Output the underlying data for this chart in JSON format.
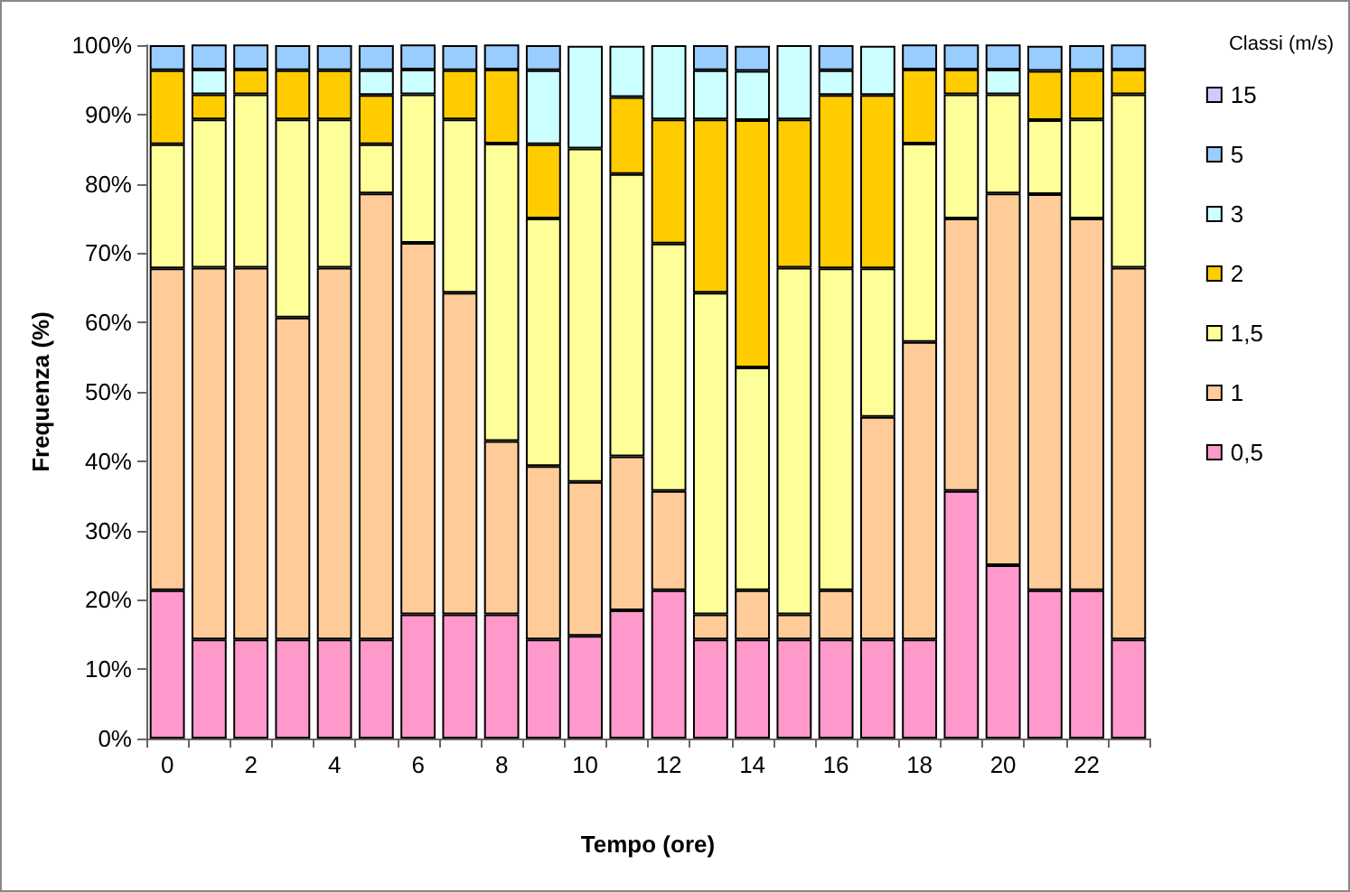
{
  "chart_data": {
    "type": "bar",
    "stacked": true,
    "xlabel": "Tempo (ore)",
    "ylabel": "Frequenza (%)",
    "legend_title": "Classi (m/s)",
    "legend": "right",
    "grid": false,
    "categories": [
      "0",
      null,
      "2",
      null,
      "4",
      null,
      "6",
      null,
      "8",
      null,
      "10",
      null,
      "12",
      null,
      "14",
      null,
      "16",
      null,
      "18",
      null,
      "20",
      null,
      "22",
      null
    ],
    "ylim": [
      0,
      100
    ],
    "yticks": [
      {
        "value": 0,
        "label": "0%"
      },
      {
        "value": 10,
        "label": "10%"
      },
      {
        "value": 20,
        "label": "20%"
      },
      {
        "value": 30,
        "label": "30%"
      },
      {
        "value": 40,
        "label": "40%"
      },
      {
        "value": 50,
        "label": "50%"
      },
      {
        "value": 60,
        "label": "60%"
      },
      {
        "value": 70,
        "label": "70%"
      },
      {
        "value": 80,
        "label": "80%"
      },
      {
        "value": 90,
        "label": "90%"
      },
      {
        "value": 100,
        "label": "100%"
      }
    ],
    "series": [
      {
        "name": "0,5",
        "color": "#ff99cc",
        "values": [
          21.4,
          14.3,
          14.3,
          14.3,
          14.3,
          14.3,
          17.9,
          17.9,
          17.9,
          14.3,
          14.8,
          18.5,
          21.4,
          14.3,
          14.3,
          14.3,
          14.3,
          14.3,
          14.3,
          35.7,
          25.0,
          21.4,
          21.4,
          14.3
        ]
      },
      {
        "name": "1",
        "color": "#ffcc99",
        "values": [
          46.4,
          53.6,
          53.6,
          46.4,
          53.6,
          64.3,
          53.6,
          46.4,
          25.0,
          25.0,
          22.2,
          22.2,
          14.3,
          3.6,
          7.1,
          3.6,
          7.1,
          32.1,
          42.9,
          39.3,
          53.6,
          57.1,
          53.6,
          53.6
        ]
      },
      {
        "name": "1,5",
        "color": "#ffff99",
        "values": [
          17.9,
          21.4,
          25.0,
          28.6,
          21.4,
          7.1,
          21.4,
          25.0,
          42.9,
          35.7,
          48.1,
          40.7,
          35.7,
          46.4,
          32.1,
          50.0,
          46.4,
          21.4,
          28.6,
          17.9,
          14.3,
          10.7,
          14.3,
          25.0
        ]
      },
      {
        "name": "2",
        "color": "#ffcc00",
        "values": [
          10.7,
          3.6,
          3.6,
          7.1,
          7.1,
          7.1,
          0,
          7.1,
          10.7,
          10.7,
          0,
          11.1,
          17.9,
          25.0,
          35.7,
          21.4,
          25.0,
          25.0,
          10.7,
          3.6,
          0,
          7.1,
          7.1,
          3.6
        ]
      },
      {
        "name": "3",
        "color": "#ccffff",
        "values": [
          0,
          3.6,
          0,
          0,
          0,
          3.6,
          3.6,
          0,
          0,
          10.7,
          14.8,
          7.4,
          10.7,
          7.1,
          7.1,
          10.7,
          3.6,
          7.1,
          0,
          0,
          3.6,
          0,
          0,
          0
        ]
      },
      {
        "name": "5",
        "color": "#99ccff",
        "values": [
          3.6,
          3.6,
          3.6,
          3.6,
          3.6,
          3.6,
          3.6,
          3.6,
          3.6,
          3.6,
          0,
          0,
          0,
          3.6,
          3.6,
          0,
          3.6,
          0,
          3.6,
          3.6,
          3.6,
          3.6,
          3.6,
          3.6
        ]
      },
      {
        "name": "15",
        "color": "#ccccff",
        "values": [
          0,
          0,
          0,
          0,
          0,
          0,
          0,
          0,
          0,
          0,
          0,
          0,
          0,
          0,
          0,
          0,
          0,
          0,
          0,
          0,
          0,
          0,
          0,
          0
        ]
      }
    ]
  }
}
